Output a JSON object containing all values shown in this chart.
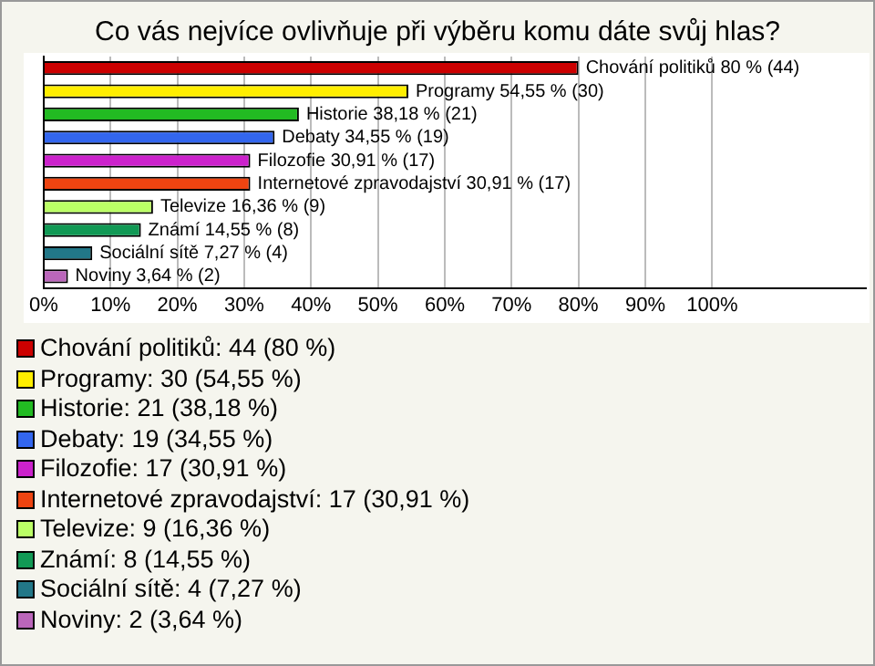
{
  "chart_data": {
    "type": "bar",
    "orientation": "horizontal",
    "title": "Co vás nejvíce ovlivňuje při výběru komu dáte svůj hlas?",
    "categories": [
      null,
      null,
      null,
      null,
      null,
      null,
      null,
      null,
      null,
      null
    ],
    "series": [
      {
        "name": "Chování politiků: 44 (80 %)",
        "color": "#cc0000",
        "values": [
          80,
          null,
          null,
          null,
          null,
          null,
          null,
          null,
          null,
          null
        ],
        "value_labels": [
          "Chování politiků 80 % (44)",
          null,
          null,
          null,
          null,
          null,
          null,
          null,
          null,
          null
        ]
      },
      {
        "name": "Programy: 30 (54,55 %)",
        "color": "#ffee00",
        "values": [
          null,
          54.55,
          null,
          null,
          null,
          null,
          null,
          null,
          null,
          null
        ],
        "value_labels": [
          null,
          "Programy 54,55 % (30)",
          null,
          null,
          null,
          null,
          null,
          null,
          null,
          null
        ]
      },
      {
        "name": "Historie: 21 (38,18 %)",
        "color": "#22bb22",
        "values": [
          null,
          null,
          38.18,
          null,
          null,
          null,
          null,
          null,
          null,
          null
        ],
        "value_labels": [
          null,
          null,
          "Historie 38,18 % (21)",
          null,
          null,
          null,
          null,
          null,
          null,
          null
        ]
      },
      {
        "name": "Debaty: 19 (34,55 %)",
        "color": "#3366ee",
        "values": [
          null,
          null,
          null,
          34.55,
          null,
          null,
          null,
          null,
          null,
          null
        ],
        "value_labels": [
          null,
          null,
          null,
          "Debaty 34,55 % (19)",
          null,
          null,
          null,
          null,
          null,
          null
        ]
      },
      {
        "name": "Filozofie: 17 (30,91 %)",
        "color": "#cc22cc",
        "values": [
          null,
          null,
          null,
          null,
          30.91,
          null,
          null,
          null,
          null,
          null
        ],
        "value_labels": [
          null,
          null,
          null,
          null,
          "Filozofie 30,91 % (17)",
          null,
          null,
          null,
          null,
          null
        ]
      },
      {
        "name": "Internetové zpravodajství: 17 (30,91 %)",
        "color": "#ee4411",
        "values": [
          null,
          null,
          null,
          null,
          null,
          30.91,
          null,
          null,
          null,
          null
        ],
        "value_labels": [
          null,
          null,
          null,
          null,
          null,
          "Internetové zpravodajství 30,91 % (17)",
          null,
          null,
          null,
          null
        ]
      },
      {
        "name": "Televize: 9 (16,36 %)",
        "color": "#bbff66",
        "values": [
          null,
          null,
          null,
          null,
          null,
          null,
          16.36,
          null,
          null,
          null
        ],
        "value_labels": [
          null,
          null,
          null,
          null,
          null,
          null,
          "Televize 16,36 % (9)",
          null,
          null,
          null
        ]
      },
      {
        "name": "Známí: 8 (14,55 %)",
        "color": "#119955",
        "values": [
          null,
          null,
          null,
          null,
          null,
          null,
          null,
          14.55,
          null,
          null
        ],
        "value_labels": [
          null,
          null,
          null,
          null,
          null,
          null,
          null,
          "Známí 14,55 % (8)",
          null,
          null
        ]
      },
      {
        "name": "Sociální sítě: 4 (7,27 %)",
        "color": "#227788",
        "values": [
          null,
          null,
          null,
          null,
          null,
          null,
          null,
          null,
          7.27,
          null
        ],
        "value_labels": [
          null,
          null,
          null,
          null,
          null,
          null,
          null,
          null,
          "Sociální sítě 7,27 % (4)",
          null
        ]
      },
      {
        "name": "Noviny: 2 (3,64 %)",
        "color": "#bb66bb",
        "values": [
          null,
          null,
          null,
          null,
          null,
          null,
          null,
          null,
          null,
          3.64
        ],
        "value_labels": [
          null,
          null,
          null,
          null,
          null,
          null,
          null,
          null,
          null,
          "Noviny 3,64 % (2)"
        ]
      }
    ],
    "xlim": [
      0,
      123
    ],
    "xticks": [
      {
        "value": 0,
        "label": "0%"
      },
      {
        "value": 10,
        "label": "10%"
      },
      {
        "value": 20,
        "label": "20%"
      },
      {
        "value": 30,
        "label": "30%"
      },
      {
        "value": 40,
        "label": "40%"
      },
      {
        "value": 50,
        "label": "50%"
      },
      {
        "value": 60,
        "label": "60%"
      },
      {
        "value": 70,
        "label": "70%"
      },
      {
        "value": 80,
        "label": "80%"
      },
      {
        "value": 90,
        "label": "90%"
      },
      {
        "value": 100,
        "label": "100%"
      }
    ],
    "grid": "x",
    "legend": "bottom"
  }
}
